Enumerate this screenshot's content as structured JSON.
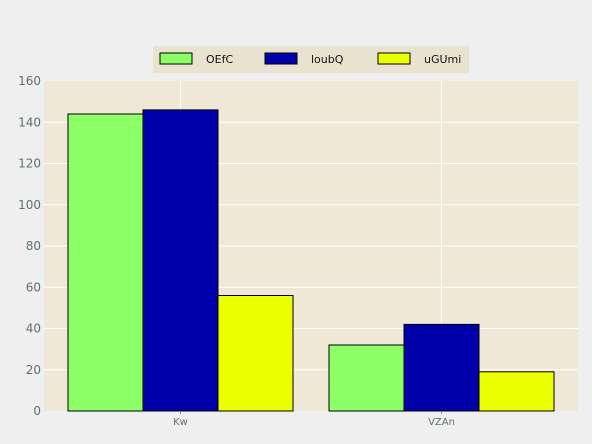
{
  "chart_data": {
    "type": "bar",
    "categories": [
      "Kw",
      "VZAn"
    ],
    "series": [
      {
        "name": "OEfC",
        "values": [
          144,
          32
        ],
        "color": "#8cff66"
      },
      {
        "name": "loubQ",
        "values": [
          146,
          42
        ],
        "color": "#0000aa"
      },
      {
        "name": "uGUmi",
        "values": [
          56,
          19
        ],
        "color": "#eaff00"
      }
    ],
    "title": "",
    "xlabel": "",
    "ylabel": "",
    "ylim": [
      0,
      160
    ],
    "yticks": [
      0,
      20,
      40,
      60,
      80,
      100,
      120,
      140,
      160
    ],
    "grid": true,
    "legend_position": "top-center",
    "plot_background": "#efe8d6",
    "figure_background": "#efefef"
  }
}
